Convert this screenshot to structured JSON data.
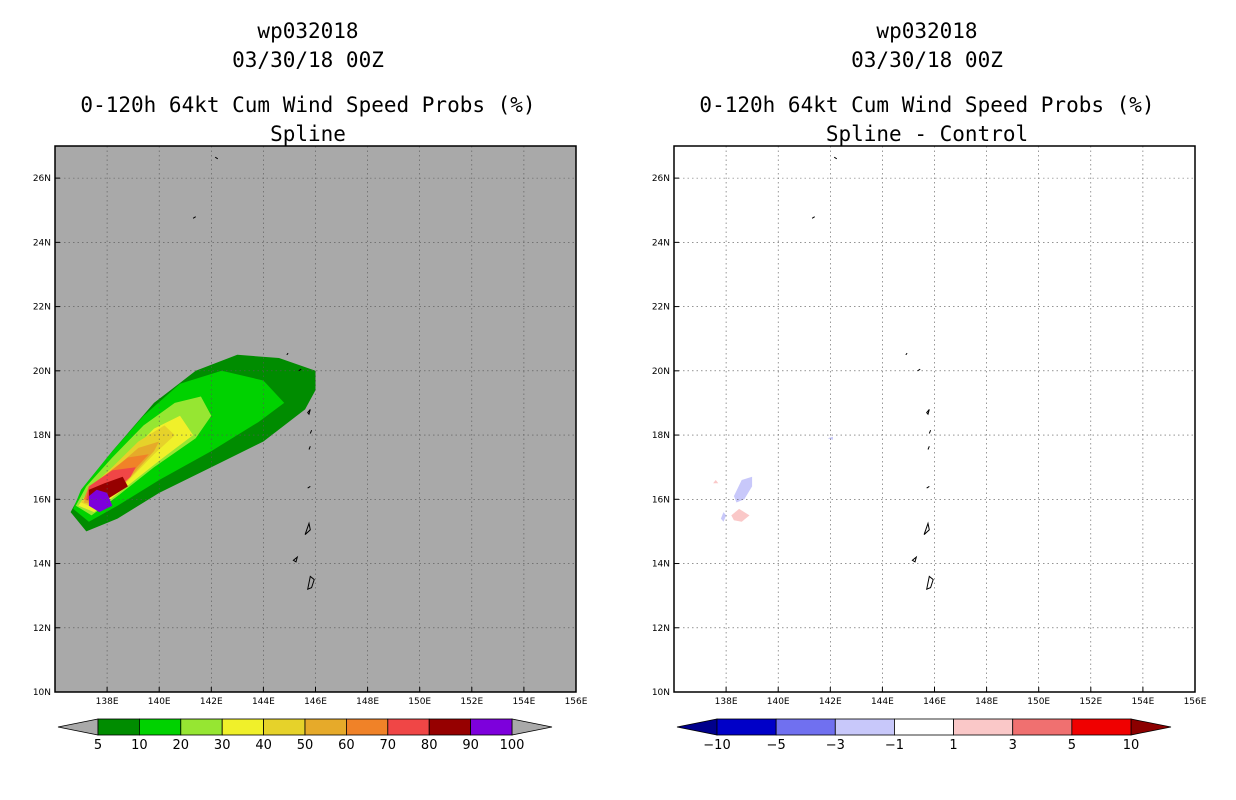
{
  "chart_data": [
    {
      "type": "contour-map",
      "title_lines": [
        "wp032018",
        "03/30/18 00Z",
        "0-120h 64kt Cum Wind Speed Probs (%)",
        "Spline"
      ],
      "xlabel": "",
      "ylabel": "",
      "xlim": [
        136,
        156
      ],
      "ylim": [
        10,
        27
      ],
      "x_ticks": [
        138,
        140,
        142,
        144,
        146,
        148,
        150,
        152,
        154,
        156
      ],
      "x_tick_labels": [
        "138E",
        "140E",
        "142E",
        "144E",
        "146E",
        "148E",
        "150E",
        "152E",
        "154E",
        "156E"
      ],
      "y_ticks": [
        10,
        12,
        14,
        16,
        18,
        20,
        22,
        24,
        26
      ],
      "y_tick_labels": [
        "10N",
        "12N",
        "14N",
        "16N",
        "18N",
        "20N",
        "22N",
        "24N",
        "26N"
      ],
      "background_color": "#a9a9a9",
      "grid": true,
      "colorbar": {
        "levels": [
          "5",
          "10",
          "20",
          "30",
          "40",
          "50",
          "60",
          "70",
          "80",
          "90",
          "100"
        ],
        "colors": [
          "#008c00",
          "#00d200",
          "#96e632",
          "#f0f02a",
          "#e6d22a",
          "#e6aa2a",
          "#f08228",
          "#f04646",
          "#960000",
          "#7d00dc"
        ],
        "below_color": "#a9a9a9",
        "above_color": "#a9a9a9"
      },
      "contours": [
        {
          "level": 5,
          "color": "#008c00",
          "points": [
            [
              136.6,
              15.6
            ],
            [
              137.2,
              15.0
            ],
            [
              138.4,
              15.4
            ],
            [
              140.0,
              16.2
            ],
            [
              142.0,
              17.0
            ],
            [
              144.0,
              17.8
            ],
            [
              145.6,
              18.8
            ],
            [
              146.0,
              19.4
            ],
            [
              146.0,
              20.0
            ],
            [
              144.6,
              20.4
            ],
            [
              143.0,
              20.5
            ],
            [
              141.4,
              20.0
            ],
            [
              139.8,
              19.0
            ],
            [
              138.2,
              17.5
            ],
            [
              137.0,
              16.2
            ]
          ]
        },
        {
          "level": 10,
          "color": "#00d200",
          "points": [
            [
              136.7,
              15.7
            ],
            [
              137.3,
              15.3
            ],
            [
              138.4,
              15.8
            ],
            [
              140.0,
              16.6
            ],
            [
              142.0,
              17.5
            ],
            [
              143.8,
              18.4
            ],
            [
              144.8,
              19.0
            ],
            [
              144.0,
              19.7
            ],
            [
              142.4,
              20.0
            ],
            [
              140.8,
              19.6
            ],
            [
              139.4,
              18.6
            ],
            [
              138.1,
              17.4
            ],
            [
              137.0,
              16.3
            ]
          ]
        },
        {
          "level": 20,
          "color": "#96e632",
          "points": [
            [
              136.8,
              15.8
            ],
            [
              137.4,
              15.5
            ],
            [
              138.4,
              16.1
            ],
            [
              139.8,
              17.0
            ],
            [
              141.4,
              17.9
            ],
            [
              142.0,
              18.6
            ],
            [
              141.6,
              19.2
            ],
            [
              140.6,
              19.0
            ],
            [
              139.4,
              18.3
            ],
            [
              138.2,
              17.3
            ],
            [
              137.2,
              16.4
            ]
          ]
        },
        {
          "level": 30,
          "color": "#f0f02a",
          "points": [
            [
              136.9,
              15.8
            ],
            [
              137.5,
              15.6
            ],
            [
              138.6,
              16.3
            ],
            [
              140.0,
              17.2
            ],
            [
              141.3,
              18.0
            ],
            [
              140.8,
              18.6
            ],
            [
              139.8,
              18.2
            ],
            [
              138.6,
              17.2
            ],
            [
              137.4,
              16.4
            ]
          ]
        },
        {
          "level": 40,
          "color": "#e6d22a",
          "points": [
            [
              137.0,
              15.9
            ],
            [
              137.6,
              15.7
            ],
            [
              138.6,
              16.4
            ],
            [
              139.8,
              17.4
            ],
            [
              140.6,
              18.0
            ],
            [
              140.2,
              18.3
            ],
            [
              139.2,
              17.8
            ],
            [
              138.2,
              17.0
            ],
            [
              137.4,
              16.4
            ]
          ]
        },
        {
          "level": 50,
          "color": "#e6aa2a",
          "points": [
            [
              137.1,
              15.9
            ],
            [
              137.7,
              15.8
            ],
            [
              138.8,
              16.6
            ],
            [
              139.8,
              17.5
            ],
            [
              140.0,
              17.8
            ],
            [
              139.2,
              17.6
            ],
            [
              138.2,
              16.9
            ],
            [
              137.4,
              16.4
            ]
          ]
        },
        {
          "level": 60,
          "color": "#f08228",
          "points": [
            [
              137.1,
              16.0
            ],
            [
              137.7,
              15.8
            ],
            [
              138.8,
              16.7
            ],
            [
              139.6,
              17.4
            ],
            [
              138.8,
              17.3
            ],
            [
              138.0,
              16.8
            ],
            [
              137.3,
              16.4
            ]
          ]
        },
        {
          "level": 70,
          "color": "#f04646",
          "points": [
            [
              137.2,
              16.0
            ],
            [
              137.8,
              15.9
            ],
            [
              138.9,
              16.7
            ],
            [
              139.1,
              17.0
            ],
            [
              138.2,
              16.9
            ],
            [
              137.3,
              16.4
            ]
          ]
        },
        {
          "level": 80,
          "color": "#960000",
          "points": [
            [
              137.3,
              16.0
            ],
            [
              137.8,
              15.9
            ],
            [
              138.8,
              16.4
            ],
            [
              138.6,
              16.7
            ],
            [
              137.9,
              16.5
            ],
            [
              137.3,
              16.3
            ]
          ]
        },
        {
          "level": 90,
          "color": "#7d00dc",
          "points": [
            [
              137.3,
              15.8
            ],
            [
              137.7,
              15.6
            ],
            [
              138.2,
              15.8
            ],
            [
              138.0,
              16.2
            ],
            [
              137.6,
              16.3
            ],
            [
              137.3,
              16.1
            ]
          ]
        }
      ]
    },
    {
      "type": "contour-map",
      "title_lines": [
        "wp032018",
        "03/30/18 00Z",
        "0-120h 64kt Cum Wind Speed Probs (%)",
        "Spline - Control"
      ],
      "xlabel": "",
      "ylabel": "",
      "xlim": [
        136,
        156
      ],
      "ylim": [
        10,
        27
      ],
      "x_ticks": [
        138,
        140,
        142,
        144,
        146,
        148,
        150,
        152,
        154,
        156
      ],
      "x_tick_labels": [
        "138E",
        "140E",
        "142E",
        "144E",
        "146E",
        "148E",
        "150E",
        "152E",
        "154E",
        "156E"
      ],
      "y_ticks": [
        10,
        12,
        14,
        16,
        18,
        20,
        22,
        24,
        26
      ],
      "y_tick_labels": [
        "10N",
        "12N",
        "14N",
        "16N",
        "18N",
        "20N",
        "22N",
        "24N",
        "26N"
      ],
      "background_color": "#ffffff",
      "grid": true,
      "colorbar": {
        "levels": [
          "−10",
          "−5",
          "−3",
          "−1",
          "1",
          "3",
          "5",
          "10"
        ],
        "colors": [
          "#0000c8",
          "#7070f0",
          "#c8c8fa",
          "#ffffff",
          "#fac8c8",
          "#f07070",
          "#f00000"
        ],
        "below_color": "#00008c",
        "above_color": "#8c0000"
      },
      "contours": [
        {
          "level": -3,
          "color": "#c8c8fa",
          "points": [
            [
              138.3,
              16.1
            ],
            [
              138.6,
              16.6
            ],
            [
              139.0,
              16.7
            ],
            [
              139.0,
              16.4
            ],
            [
              138.7,
              16.0
            ],
            [
              138.4,
              15.9
            ]
          ]
        },
        {
          "level": -3,
          "color": "#c8c8fa",
          "points": [
            [
              137.8,
              15.4
            ],
            [
              137.9,
              15.6
            ],
            [
              138.0,
              15.5
            ],
            [
              137.9,
              15.3
            ]
          ]
        },
        {
          "level": -3,
          "color": "#c8c8fa",
          "points": [
            [
              141.9,
              17.9
            ],
            [
              142.1,
              17.95
            ],
            [
              142.1,
              17.85
            ]
          ]
        },
        {
          "level": 3,
          "color": "#fac8c8",
          "points": [
            [
              138.2,
              15.5
            ],
            [
              138.5,
              15.7
            ],
            [
              138.9,
              15.5
            ],
            [
              138.6,
              15.3
            ],
            [
              138.3,
              15.35
            ]
          ]
        },
        {
          "level": 3,
          "color": "#fac8c8",
          "points": [
            [
              137.5,
              16.5
            ],
            [
              137.6,
              16.6
            ],
            [
              137.7,
              16.5
            ]
          ]
        }
      ]
    }
  ]
}
